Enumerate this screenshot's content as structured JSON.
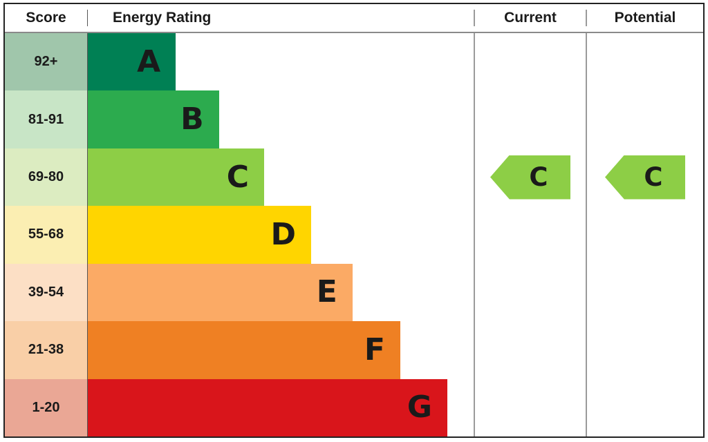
{
  "headers": {
    "score": "Score",
    "energy_rating": "Energy Rating",
    "current": "Current",
    "potential": "Potential"
  },
  "bands": [
    {
      "letter": "A",
      "score": "92+",
      "color": "#008054",
      "tint": "#a0c6ab",
      "width_pct": "22.8%"
    },
    {
      "letter": "B",
      "score": "81-91",
      "color": "#2cab4e",
      "tint": "#c8e5c6",
      "width_pct": "34%"
    },
    {
      "letter": "C",
      "score": "69-80",
      "color": "#8dce46",
      "tint": "#dcecc1",
      "width_pct": "45.7%"
    },
    {
      "letter": "D",
      "score": "55-68",
      "color": "#ffd500",
      "tint": "#fbeeb2",
      "width_pct": "57.9%"
    },
    {
      "letter": "E",
      "score": "39-54",
      "color": "#fbaa65",
      "tint": "#fcdfc5",
      "width_pct": "68.6%"
    },
    {
      "letter": "F",
      "score": "21-38",
      "color": "#ef8023",
      "tint": "#f9cfa7",
      "width_pct": "81%"
    },
    {
      "letter": "G",
      "score": "1-20",
      "color": "#d9151b",
      "tint": "#eaa795",
      "width_pct": "93.2%"
    }
  ],
  "current": {
    "letter": "C",
    "color": "#8dce46"
  },
  "potential": {
    "letter": "C",
    "color": "#8dce46"
  },
  "chart_data": {
    "type": "bar",
    "title": "Energy Rating (EPC band chart)",
    "categories": [
      "A",
      "B",
      "C",
      "D",
      "E",
      "F",
      "G"
    ],
    "score_ranges": [
      "92+",
      "81-91",
      "69-80",
      "55-68",
      "39-54",
      "21-38",
      "1-20"
    ],
    "series": [
      {
        "name": "relative_bar_width_percent",
        "values": [
          22.8,
          34,
          45.7,
          57.9,
          68.6,
          81,
          93.2
        ]
      }
    ],
    "band_colors": [
      "#008054",
      "#2cab4e",
      "#8dce46",
      "#ffd500",
      "#fbaa65",
      "#ef8023",
      "#d9151b"
    ],
    "current_rating": "C",
    "potential_rating": "C",
    "xlabel": "",
    "ylabel": "Score",
    "legend": "off",
    "grid": "off"
  }
}
